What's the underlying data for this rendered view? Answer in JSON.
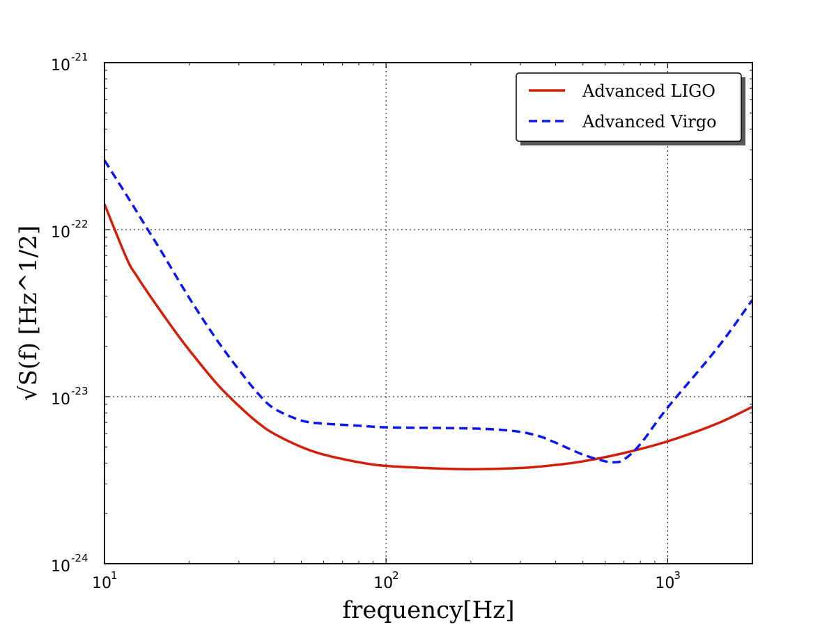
{
  "chart_data": {
    "type": "line",
    "title": "",
    "xlabel": "frequency[Hz]",
    "ylabel": "√S(f) [Hz^1/2]",
    "xscale": "log",
    "yscale": "log",
    "xlim": [
      10,
      2000
    ],
    "ylim": [
      1e-24,
      1e-21
    ],
    "grid": true,
    "legend_position": "top-right",
    "x_ticks": [
      {
        "value": 10,
        "base": "10",
        "exp": "1"
      },
      {
        "value": 100,
        "base": "10",
        "exp": "2"
      },
      {
        "value": 1000,
        "base": "10",
        "exp": "3"
      }
    ],
    "y_ticks": [
      {
        "value": 1e-24,
        "base": "10",
        "exp": "-24"
      },
      {
        "value": 1e-23,
        "base": "10",
        "exp": "-23"
      },
      {
        "value": 1e-22,
        "base": "10",
        "exp": "-22"
      },
      {
        "value": 1e-21,
        "base": "10",
        "exp": "-21"
      }
    ],
    "series": [
      {
        "name": "Advanced LIGO",
        "color": "#d21e0a",
        "style": "solid",
        "x": [
          10,
          12,
          13,
          15,
          18,
          20,
          25,
          30,
          35,
          40,
          50,
          60,
          80,
          100,
          150,
          200,
          300,
          400,
          500,
          700,
          1000,
          1500,
          2000
        ],
        "y": [
          1.42e-22,
          6.7e-23,
          5.3e-23,
          3.7e-23,
          2.4e-23,
          1.9e-23,
          1.2e-23,
          8.8e-24,
          7e-24,
          6e-24,
          5e-24,
          4.5e-24,
          4.05e-24,
          3.85e-24,
          3.72e-24,
          3.68e-24,
          3.74e-24,
          3.9e-24,
          4.1e-24,
          4.6e-24,
          5.4e-24,
          6.9e-24,
          8.7e-24
        ]
      },
      {
        "name": "Advanced Virgo",
        "color": "#0b17f0",
        "style": "dashed",
        "x": [
          10,
          12,
          14,
          16,
          20,
          25,
          30,
          35,
          40,
          50,
          60,
          80,
          100,
          150,
          200,
          250,
          300,
          350,
          400,
          500,
          600,
          650,
          700,
          800,
          1000,
          1500,
          2000
        ],
        "y": [
          2.6e-22,
          1.6e-22,
          1.05e-22,
          7.3e-23,
          3.9e-23,
          2.2e-23,
          1.45e-23,
          1.05e-23,
          8.5e-24,
          7.2e-24,
          6.9e-24,
          6.7e-24,
          6.55e-24,
          6.5e-24,
          6.45e-24,
          6.35e-24,
          6.15e-24,
          5.8e-24,
          5.3e-24,
          4.5e-24,
          4.1e-24,
          4.05e-24,
          4.2e-24,
          5.2e-24,
          8.6e-24,
          1.95e-23,
          3.8e-23
        ]
      }
    ]
  }
}
